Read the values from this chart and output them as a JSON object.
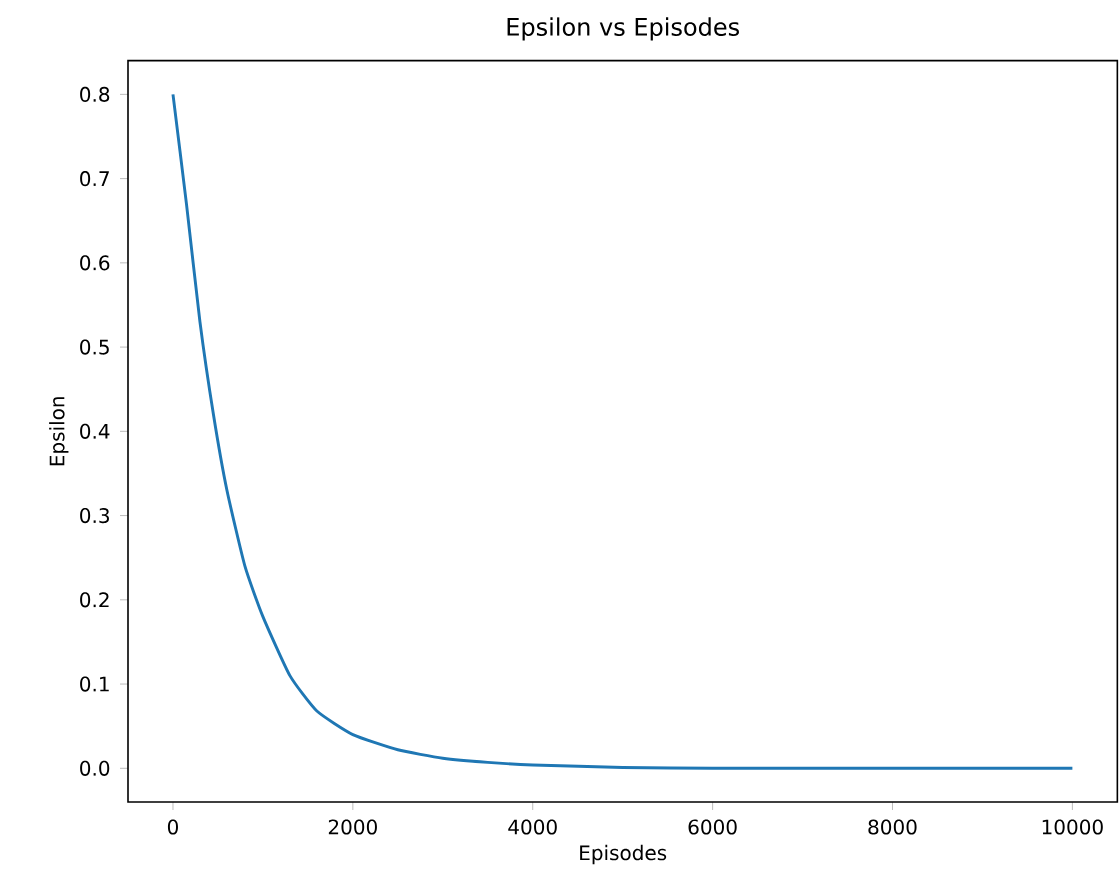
{
  "chart_data": {
    "type": "line",
    "title": "Epsilon vs Episodes",
    "xlabel": "Episodes",
    "ylabel": "Epsilon",
    "x": [
      0,
      150,
      300,
      450,
      600,
      800,
      1000,
      1300,
      1600,
      2000,
      2500,
      3000,
      3500,
      4000,
      5000,
      6000,
      8000,
      10000
    ],
    "series": [
      {
        "color": "#1f77b4",
        "values": [
          0.8,
          0.67,
          0.53,
          0.42,
          0.33,
          0.24,
          0.18,
          0.11,
          0.068,
          0.04,
          0.022,
          0.012,
          0.007,
          0.004,
          0.001,
          0,
          0,
          0
        ]
      }
    ],
    "xlim": [
      -500,
      10500
    ],
    "ylim": [
      -0.04,
      0.84
    ],
    "xticks": [
      0,
      2000,
      4000,
      6000,
      8000,
      10000
    ],
    "yticks": [
      {
        "value": 0,
        "label": "0.0"
      },
      {
        "value": 0.1,
        "label": "0.1"
      },
      {
        "value": 0.2,
        "label": "0.2"
      },
      {
        "value": 0.3,
        "label": "0.3"
      },
      {
        "value": 0.4,
        "label": "0.4"
      },
      {
        "value": 0.5,
        "label": "0.5"
      },
      {
        "value": 0.6,
        "label": "0.6"
      },
      {
        "value": 0.7,
        "label": "0.7"
      },
      {
        "value": 0.8,
        "label": "0.8"
      }
    ],
    "grid": false
  }
}
